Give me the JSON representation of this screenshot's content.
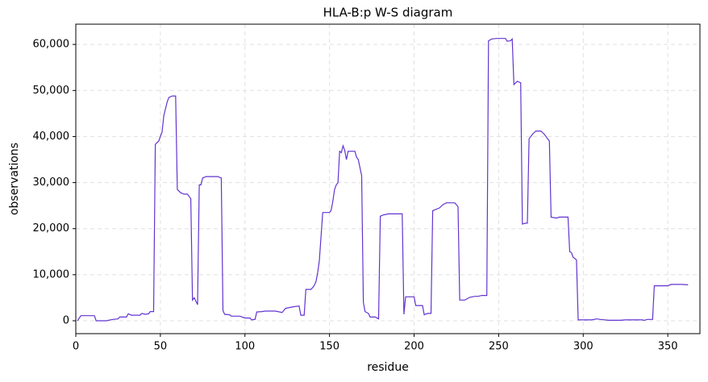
{
  "chart_data": {
    "type": "line",
    "title": "HLA-B:p W-S diagram",
    "x_label": "residue",
    "y_label": "observations",
    "color": "#6234d0",
    "grid": true,
    "xlim": [
      0,
      369
    ],
    "ylim": [
      -2800,
      64400
    ],
    "xticks": [
      0,
      50,
      100,
      150,
      200,
      250,
      300,
      350
    ],
    "yticks": [
      0,
      {
        "value": 10000,
        "label": "10,000"
      },
      {
        "value": 20000,
        "label": "20,000"
      },
      {
        "value": 30000,
        "label": "30,000"
      },
      {
        "value": 40000,
        "label": "40,000"
      },
      {
        "value": 50000,
        "label": "50,000"
      },
      {
        "value": 60000,
        "label": "60,000"
      }
    ],
    "x": [
      1,
      3,
      11,
      12,
      18,
      22,
      25,
      26,
      30,
      31,
      33,
      38,
      39,
      41,
      43,
      44,
      46,
      47,
      49,
      51,
      52,
      54,
      55,
      57,
      59,
      60,
      62,
      64,
      66,
      67,
      68,
      69,
      70,
      72,
      73,
      74,
      75,
      77,
      84,
      86,
      87,
      88,
      91,
      92,
      97,
      100,
      103,
      104,
      106,
      107,
      110,
      112,
      118,
      122,
      124,
      128,
      132,
      133,
      135,
      136,
      139,
      140,
      141,
      142,
      143,
      144,
      146,
      150,
      151,
      152,
      153,
      154,
      155,
      156,
      157,
      158,
      159,
      160,
      161,
      165,
      166,
      167,
      169,
      170,
      171,
      173,
      174,
      177,
      179,
      180,
      182,
      185,
      193,
      194,
      195,
      200,
      201,
      205,
      206,
      208,
      210,
      211,
      215,
      217,
      219,
      224,
      226,
      227,
      230,
      233,
      236,
      238,
      240,
      243,
      244,
      246,
      249,
      254,
      255,
      257,
      258,
      259,
      261,
      263,
      264,
      266,
      267,
      268,
      270,
      272,
      275,
      277,
      280,
      281,
      284,
      286,
      291,
      292,
      293,
      294,
      296,
      297,
      305,
      308,
      310,
      315,
      322,
      325,
      335,
      336,
      338,
      341,
      342,
      350,
      352,
      358,
      362
    ],
    "values": [
      0,
      1100,
      1100,
      0,
      0,
      300,
      400,
      800,
      800,
      1500,
      1200,
      1200,
      1600,
      1400,
      1500,
      2000,
      2000,
      38300,
      39000,
      41000,
      44500,
      47500,
      48500,
      48800,
      48800,
      28500,
      27800,
      27500,
      27500,
      27000,
      26500,
      4500,
      5000,
      3500,
      29500,
      29500,
      31000,
      31300,
      31300,
      31000,
      2200,
      1400,
      1300,
      1000,
      1000,
      600,
      600,
      200,
      300,
      1900,
      2000,
      2100,
      2100,
      1800,
      2700,
      3000,
      3200,
      1200,
      1200,
      6800,
      6800,
      7200,
      7700,
      8500,
      10500,
      13000,
      23500,
      23500,
      24000,
      26000,
      28500,
      29500,
      30000,
      36800,
      36500,
      38000,
      37000,
      35000,
      36800,
      36800,
      35500,
      35000,
      31500,
      4000,
      2000,
      1600,
      800,
      800,
      400,
      22700,
      23000,
      23200,
      23200,
      1400,
      5200,
      5200,
      3300,
      3300,
      1300,
      1600,
      1600,
      23900,
      24500,
      25200,
      25600,
      25600,
      24800,
      4500,
      4500,
      5100,
      5300,
      5300,
      5500,
      5500,
      60800,
      61200,
      61300,
      61300,
      60700,
      60800,
      61200,
      51300,
      52000,
      51700,
      21000,
      21200,
      21200,
      39500,
      40500,
      41200,
      41200,
      40500,
      39000,
      22500,
      22300,
      22500,
      22500,
      15000,
      14800,
      13800,
      13200,
      200,
      200,
      400,
      300,
      100,
      100,
      200,
      200,
      100,
      300,
      300,
      7600,
      7600,
      7900,
      7900,
      7800
    ]
  }
}
